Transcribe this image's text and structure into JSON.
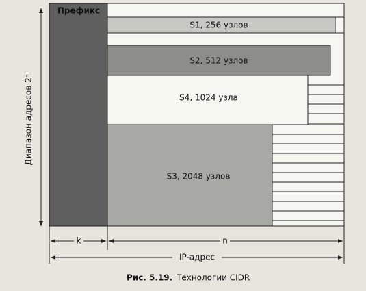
{
  "header": {
    "prefix": "Префикс",
    "range": "Диапазон адресов 2ⁿ"
  },
  "blocks": [
    {
      "label": "S1, 256 узлов"
    },
    {
      "label": "S2, 512 узлов"
    },
    {
      "label": "S4, 1024 узла"
    },
    {
      "label": "S3, 2048 узлов"
    }
  ],
  "footer": {
    "k": "k",
    "n": "n",
    "ip": "IP-адрес"
  },
  "caption": {
    "number": "Рис. 5.19.",
    "text": "Технологии CIDR"
  }
}
